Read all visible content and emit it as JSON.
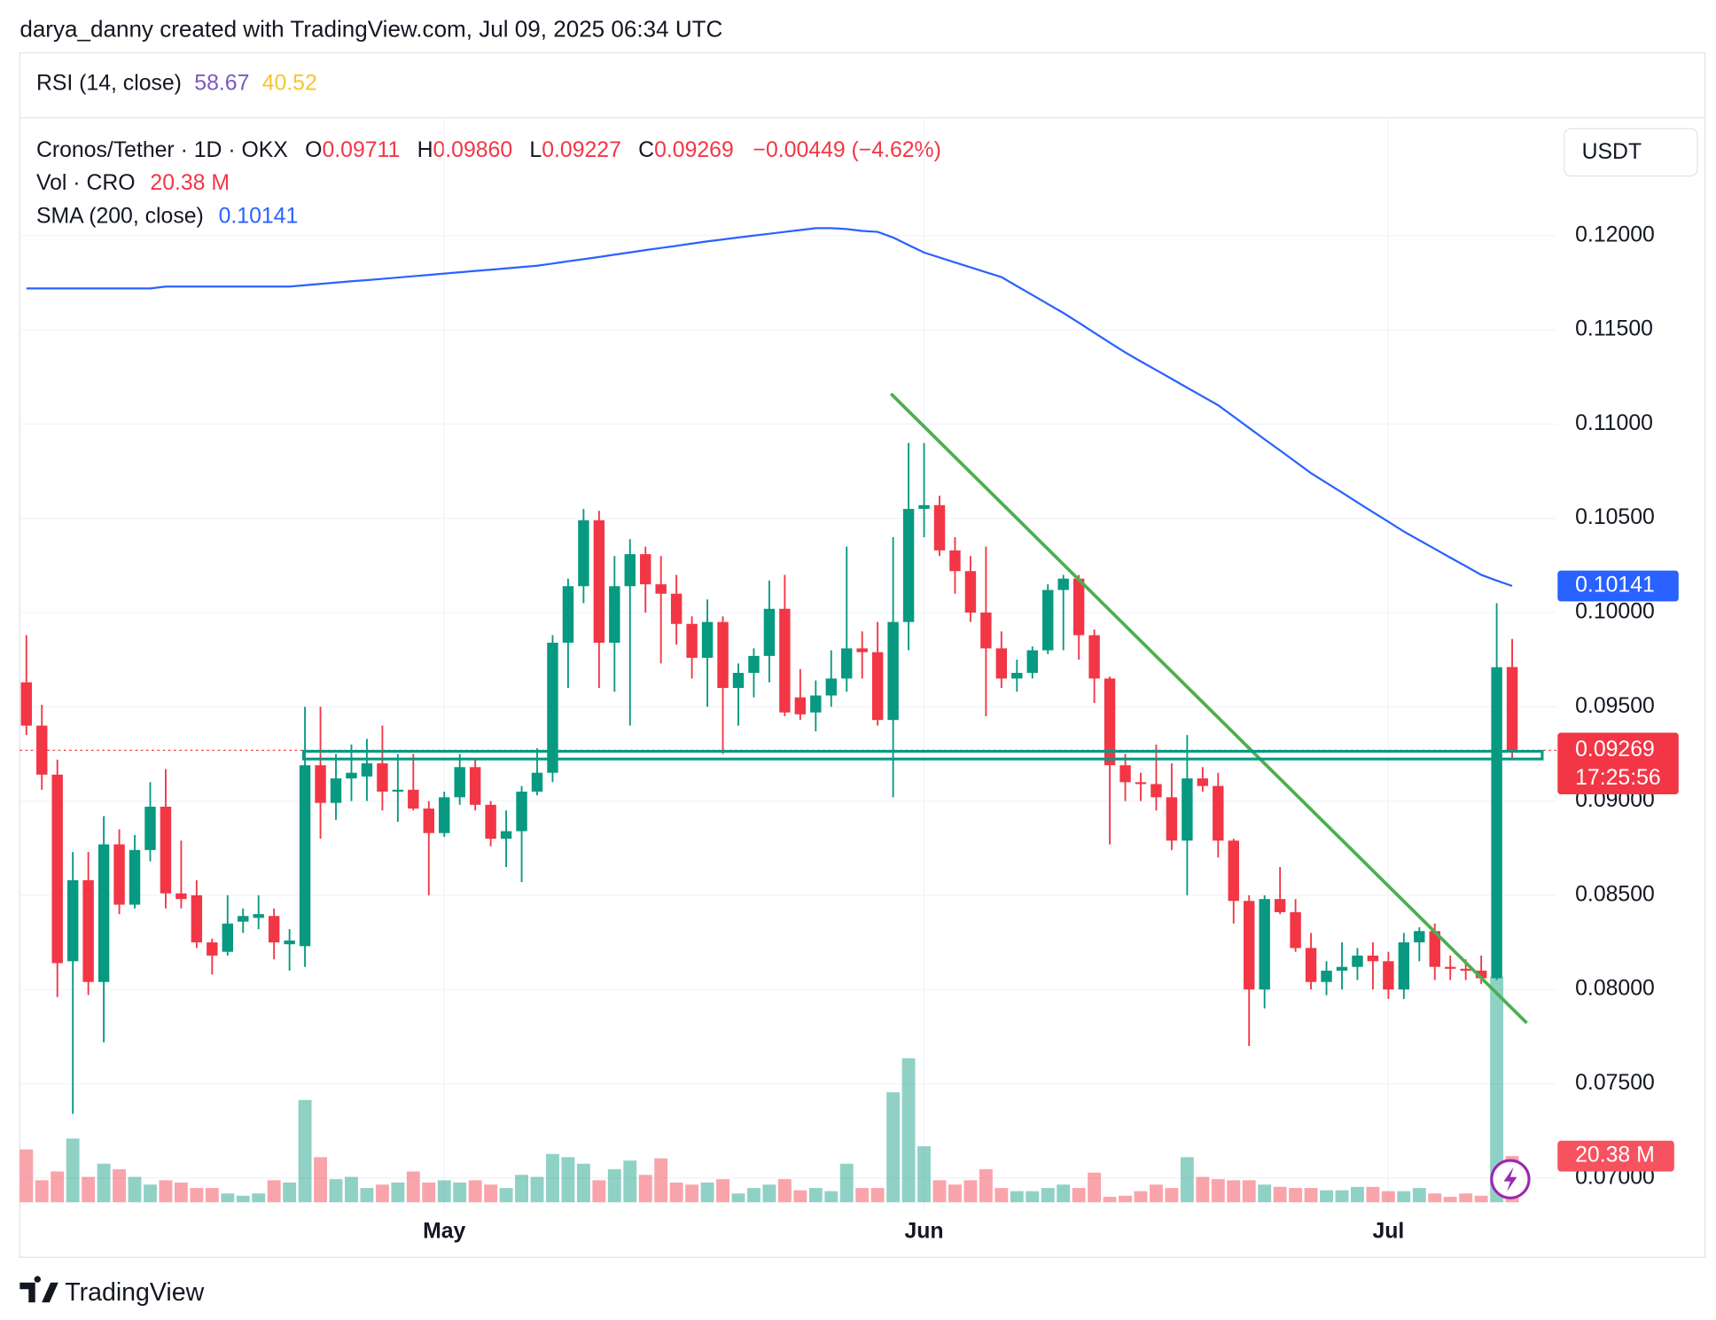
{
  "header": {
    "credit": "darya_danny created with TradingView.com, Jul 09, 2025 06:34 UTC",
    "rsi": {
      "label": "RSI (14, close)",
      "value1": "58.67",
      "value2": "40.52"
    },
    "legend": {
      "symbol": "Cronos/Tether · 1D · OKX",
      "o_label": "O",
      "o": "0.09711",
      "h_label": "H",
      "h": "0.09860",
      "l_label": "L",
      "l": "0.09227",
      "c_label": "C",
      "c": "0.09269",
      "change": "−0.00449 (−4.62%)"
    },
    "currency": "USDT",
    "countdown": "17:25:56",
    "footer": "TradingView"
  },
  "chart_data": {
    "type": "candlestick",
    "categories": [
      null,
      null,
      null,
      null,
      null,
      null,
      null,
      null,
      null,
      null,
      null,
      null,
      null,
      null,
      null,
      null,
      null,
      null,
      null,
      null,
      null,
      null,
      null,
      null,
      null,
      null,
      null,
      "May",
      null,
      null,
      null,
      null,
      null,
      null,
      null,
      null,
      null,
      null,
      null,
      null,
      null,
      null,
      null,
      null,
      null,
      null,
      null,
      null,
      null,
      null,
      null,
      null,
      null,
      null,
      null,
      null,
      null,
      null,
      "Jun",
      null,
      null,
      null,
      null,
      null,
      null,
      null,
      null,
      null,
      null,
      null,
      null,
      null,
      null,
      null,
      null,
      null,
      null,
      null,
      null,
      null,
      null,
      null,
      null,
      null,
      null,
      null,
      null,
      null,
      "Jul",
      null,
      null,
      null,
      null,
      null,
      null,
      null,
      null
    ],
    "open": [
      0.0963,
      0.094,
      0.0914,
      0.0815,
      0.0858,
      0.0804,
      0.0877,
      0.0845,
      0.0874,
      0.0897,
      0.0851,
      0.085,
      0.0825,
      0.082,
      0.0836,
      0.0838,
      0.0839,
      0.0824,
      0.0823,
      0.0919,
      0.0899,
      0.0912,
      0.0913,
      0.092,
      0.0905,
      0.0906,
      0.0896,
      0.0883,
      0.0902,
      0.0918,
      0.0898,
      0.088,
      0.0884,
      0.0905,
      0.0915,
      0.0984,
      0.1014,
      0.1049,
      0.0984,
      0.1014,
      0.1031,
      0.1015,
      0.101,
      0.0994,
      0.0976,
      0.0995,
      0.096,
      0.0968,
      0.0977,
      0.1002,
      0.0955,
      0.0947,
      0.0956,
      0.0965,
      0.0981,
      0.0979,
      0.0943,
      0.0995,
      0.1055,
      0.1057,
      0.1033,
      0.1022,
      0.1,
      0.0981,
      0.0965,
      0.0968,
      0.098,
      0.1012,
      0.1018,
      0.0988,
      0.0965,
      0.0919,
      0.091,
      0.0909,
      0.0902,
      0.0879,
      0.0912,
      0.0908,
      0.0879,
      0.0847,
      0.08,
      0.0848,
      0.0841,
      0.0822,
      0.0804,
      0.081,
      0.0812,
      0.0818,
      0.0815,
      0.08,
      0.0825,
      0.0831,
      0.0812,
      0.0811,
      0.081,
      0.0806,
      0.09711
    ],
    "high": [
      0.0988,
      0.0951,
      0.0922,
      0.0873,
      0.0873,
      0.0892,
      0.0885,
      0.0882,
      0.091,
      0.0917,
      0.0879,
      0.0858,
      0.0827,
      0.085,
      0.0843,
      0.085,
      0.0843,
      0.0832,
      0.095,
      0.095,
      0.0925,
      0.093,
      0.0933,
      0.094,
      0.0925,
      0.0925,
      0.09,
      0.0905,
      0.0925,
      0.0922,
      0.09,
      0.0895,
      0.0908,
      0.0928,
      0.0988,
      0.1018,
      0.1055,
      0.1054,
      0.103,
      0.1039,
      0.1035,
      0.103,
      0.102,
      0.0998,
      0.1007,
      0.0998,
      0.0973,
      0.0981,
      0.1017,
      0.102,
      0.097,
      0.0964,
      0.098,
      0.1035,
      0.099,
      0.0995,
      0.104,
      0.109,
      0.109,
      0.1062,
      0.104,
      0.103,
      0.1035,
      0.099,
      0.0975,
      0.0982,
      0.1015,
      0.102,
      0.102,
      0.0991,
      0.0966,
      0.0925,
      0.0915,
      0.093,
      0.092,
      0.0935,
      0.0918,
      0.0915,
      0.088,
      0.085,
      0.085,
      0.0865,
      0.0848,
      0.083,
      0.0815,
      0.0825,
      0.0822,
      0.0825,
      0.082,
      0.083,
      0.0833,
      0.0835,
      0.0818,
      0.0816,
      0.0818,
      0.1005,
      0.0986
    ],
    "low": [
      0.0935,
      0.0906,
      0.0796,
      0.0734,
      0.0797,
      0.0772,
      0.084,
      0.0843,
      0.0868,
      0.0843,
      0.0843,
      0.0822,
      0.0808,
      0.0818,
      0.083,
      0.0832,
      0.0816,
      0.081,
      0.0812,
      0.088,
      0.089,
      0.09,
      0.09,
      0.0895,
      0.0889,
      0.0895,
      0.085,
      0.0881,
      0.0898,
      0.0895,
      0.0876,
      0.0865,
      0.0857,
      0.0903,
      0.091,
      0.096,
      0.1005,
      0.096,
      0.0958,
      0.094,
      0.1,
      0.0973,
      0.0983,
      0.0965,
      0.095,
      0.0925,
      0.094,
      0.0955,
      0.0963,
      0.0945,
      0.0943,
      0.0937,
      0.095,
      0.0958,
      0.0965,
      0.094,
      0.0902,
      0.098,
      0.104,
      0.103,
      0.101,
      0.0995,
      0.0945,
      0.096,
      0.0958,
      0.0965,
      0.0978,
      0.098,
      0.0975,
      0.0952,
      0.0877,
      0.09,
      0.09,
      0.0895,
      0.0874,
      0.085,
      0.0905,
      0.087,
      0.0835,
      0.077,
      0.079,
      0.084,
      0.082,
      0.08,
      0.0797,
      0.08,
      0.0805,
      0.08,
      0.0795,
      0.0795,
      0.0815,
      0.0805,
      0.0805,
      0.0805,
      0.0803,
      0.0805,
      0.09227
    ],
    "close": [
      0.094,
      0.0914,
      0.0814,
      0.0858,
      0.0804,
      0.0877,
      0.0845,
      0.0874,
      0.0897,
      0.0851,
      0.0848,
      0.0825,
      0.0818,
      0.0835,
      0.0839,
      0.084,
      0.0825,
      0.0826,
      0.0919,
      0.0899,
      0.0912,
      0.0915,
      0.092,
      0.0905,
      0.0906,
      0.0896,
      0.0883,
      0.0902,
      0.0918,
      0.0898,
      0.088,
      0.0884,
      0.0905,
      0.0915,
      0.0984,
      0.1014,
      0.1049,
      0.0984,
      0.1014,
      0.1031,
      0.1015,
      0.101,
      0.0994,
      0.0976,
      0.0995,
      0.096,
      0.0968,
      0.0977,
      0.1002,
      0.0947,
      0.0946,
      0.0956,
      0.0965,
      0.0981,
      0.0979,
      0.0943,
      0.0995,
      0.1055,
      0.1057,
      0.1033,
      0.1022,
      0.1,
      0.0981,
      0.0965,
      0.0968,
      0.098,
      0.1012,
      0.1018,
      0.0988,
      0.0965,
      0.0919,
      0.091,
      0.0909,
      0.0902,
      0.0879,
      0.0912,
      0.0908,
      0.0879,
      0.0847,
      0.08,
      0.0848,
      0.0841,
      0.0822,
      0.0804,
      0.081,
      0.0812,
      0.0818,
      0.0815,
      0.08,
      0.0825,
      0.0831,
      0.0812,
      0.0811,
      0.081,
      0.0806,
      0.0971,
      0.09269
    ],
    "colors": {
      "up": "#089981",
      "down": "#f23645"
    },
    "volume": {
      "name": "Vol · CRO",
      "values": [
        23.3,
        9.7,
        13.6,
        28.1,
        11.2,
        17.0,
        14.6,
        11.2,
        7.8,
        9.7,
        8.7,
        6.3,
        6.3,
        3.9,
        2.9,
        3.9,
        9.7,
        8.7,
        45.1,
        19.9,
        10.2,
        11.2,
        6.3,
        7.8,
        8.7,
        13.6,
        8.7,
        9.7,
        8.7,
        9.7,
        7.8,
        6.3,
        12.1,
        11.2,
        21.3,
        19.9,
        17.0,
        9.7,
        14.6,
        18.4,
        12.1,
        19.4,
        8.7,
        7.8,
        8.7,
        10.2,
        3.9,
        6.3,
        7.8,
        10.2,
        5.3,
        6.3,
        4.9,
        17.0,
        6.3,
        6.3,
        48.5,
        63.5,
        24.7,
        9.7,
        7.8,
        9.7,
        14.6,
        6.3,
        4.9,
        4.9,
        6.3,
        7.8,
        6.3,
        13.1,
        2.4,
        2.9,
        4.9,
        7.8,
        6.3,
        19.9,
        11.2,
        10.2,
        9.7,
        9.7,
        7.8,
        6.8,
        6.3,
        6.3,
        5.3,
        5.3,
        6.8,
        6.8,
        4.9,
        4.9,
        6.3,
        3.9,
        2.4,
        3.9,
        2.9,
        99.4,
        20.38
      ],
      "value_labels": [
        null,
        null,
        null,
        null,
        null,
        null,
        null,
        null,
        null,
        null,
        null,
        null,
        null,
        null,
        null,
        null,
        null,
        null,
        null,
        null,
        null,
        null,
        null,
        null,
        null,
        null,
        null,
        null,
        null,
        null,
        null,
        null,
        null,
        null,
        null,
        null,
        null,
        null,
        null,
        null,
        null,
        null,
        null,
        null,
        null,
        null,
        null,
        null,
        null,
        null,
        null,
        null,
        null,
        null,
        null,
        null,
        null,
        null,
        null,
        null,
        null,
        null,
        null,
        null,
        null,
        null,
        null,
        null,
        null,
        null,
        null,
        null,
        null,
        null,
        null,
        null,
        null,
        null,
        null,
        null,
        null,
        null,
        null,
        null,
        null,
        null,
        null,
        null,
        null,
        null,
        null,
        null,
        null,
        null,
        null,
        null,
        "20.38 M"
      ]
    },
    "sma": {
      "name": "SMA (200, close)",
      "color": "#2962ff",
      "values": [
        0.1172,
        0.1172,
        0.1172,
        0.1172,
        0.1172,
        0.1172,
        0.1172,
        0.1172,
        0.1172,
        0.1173,
        0.1173,
        0.1173,
        0.1173,
        0.1173,
        0.1173,
        0.1173,
        0.1173,
        0.1173,
        0.11737,
        0.11744,
        0.11751,
        0.11758,
        0.11764,
        0.11771,
        0.11778,
        0.11785,
        0.11792,
        0.11799,
        0.11806,
        0.11813,
        0.11819,
        0.11826,
        0.11833,
        0.1184,
        0.11852,
        0.11864,
        0.11875,
        0.11887,
        0.11899,
        0.11911,
        0.11923,
        0.11935,
        0.11946,
        0.11958,
        0.1197,
        0.1198,
        0.1199,
        0.12,
        0.1201,
        0.1202,
        0.1203,
        0.1204,
        0.1204,
        0.12035,
        0.12025,
        0.1202,
        0.1199,
        0.1195,
        0.1191,
        0.11884,
        0.11858,
        0.11832,
        0.11806,
        0.1178,
        0.11732,
        0.11685,
        0.11637,
        0.1159,
        0.11538,
        0.11485,
        0.11432,
        0.1138,
        0.11333,
        0.11287,
        0.1124,
        0.11193,
        0.11147,
        0.111,
        0.1104,
        0.1098,
        0.1092,
        0.1086,
        0.108,
        0.1074,
        0.10688,
        0.10637,
        0.10585,
        0.10533,
        0.10482,
        0.1043,
        0.10384,
        0.10338,
        0.10292,
        0.10246,
        0.102,
        0.1017,
        0.10141
      ]
    },
    "ylim": [
      0.0683,
      0.1262
    ],
    "yticks": [
      {
        "value": 0.07,
        "label": "0.07000"
      },
      {
        "value": 0.075,
        "label": "0.07500"
      },
      {
        "value": 0.08,
        "label": "0.08000"
      },
      {
        "value": 0.085,
        "label": "0.08500"
      },
      {
        "value": 0.09,
        "label": "0.09000"
      },
      {
        "value": 0.095,
        "label": "0.09500"
      },
      {
        "value": 0.1,
        "label": "0.10000"
      },
      {
        "value": 0.105,
        "label": "0.10500"
      },
      {
        "value": 0.11,
        "label": "0.11000"
      },
      {
        "value": 0.115,
        "label": "0.11500"
      },
      {
        "value": 0.12,
        "label": "0.12000"
      }
    ],
    "grid": true
  }
}
